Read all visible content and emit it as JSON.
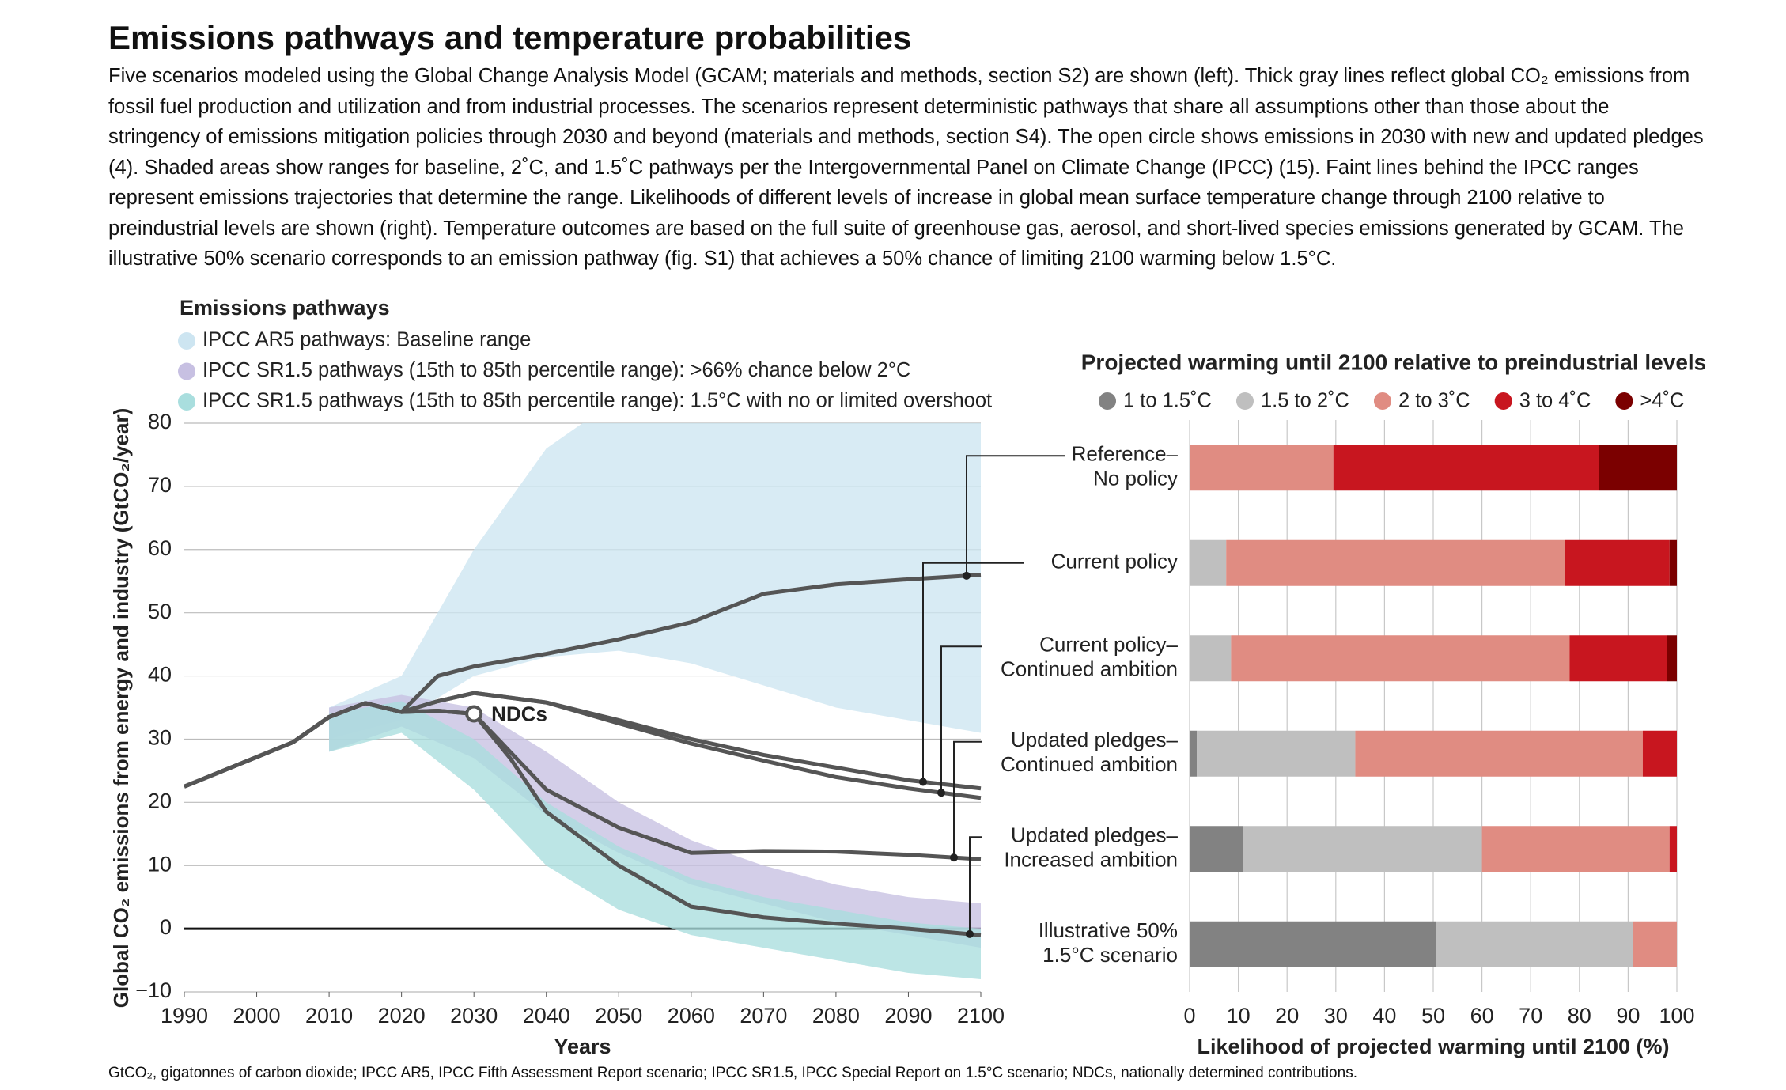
{
  "title": "Emissions pathways and temperature probabilities",
  "description": "Five scenarios modeled using the Global Change Analysis Model (GCAM; materials and methods, section S2) are shown (left). Thick gray lines reflect global CO₂ emissions from fossil fuel production and utilization and from industrial processes. The scenarios represent deterministic pathways that share all assumptions other than those about the stringency of emissions mitigation policies through 2030 and beyond (materials and methods, section S4). The open circle shows emissions in 2030 with new and updated pledges (4). Shaded areas show ranges for baseline, 2˚C, and 1.5˚C pathways per the Intergovernmental Panel on Climate Change (IPCC) (15). Faint lines behind the IPCC ranges represent emissions trajectories that determine the range. Likelihoods of different levels of increase in global mean surface temperature change through 2100 relative to preindustrial levels are shown (right). Temperature outcomes are based on the full suite of greenhouse gas, aerosol, and short-lived species emissions generated by GCAM. The illustrative 50% scenario corresponds to an emission pathway (fig. S1) that achieves a 50% chance of limiting 2100 warming below 1.5°C.",
  "footnote": "GtCO₂, gigatonnes of carbon dioxide; IPCC AR5, IPCC Fifth Assessment Report scenario; IPCC SR1.5, IPCC Special Report on 1.5°C scenario; NDCs, nationally determined contributions.",
  "chart_data": [
    {
      "type": "line",
      "title": "Emissions pathways",
      "xlabel": "Years",
      "ylabel": "Global CO₂ emissions from energy and industry (GtCO₂/year)",
      "xlim": [
        1990,
        2100
      ],
      "ylim": [
        -10,
        80
      ],
      "xticks": [
        1990,
        2000,
        2010,
        2020,
        2030,
        2040,
        2050,
        2060,
        2070,
        2080,
        2090,
        2100
      ],
      "yticks": [
        {
          "value": -10,
          "label": "−10"
        },
        0,
        10,
        20,
        30,
        40,
        50,
        60,
        70,
        80
      ],
      "grid": true,
      "ranges": [
        {
          "name": "IPCC AR5 pathways: Baseline range",
          "color": "#cde5f1",
          "x": [
            2010,
            2020,
            2030,
            2040,
            2045,
            2050,
            2060,
            2070,
            2080,
            2090,
            2100
          ],
          "lower": [
            30,
            33,
            40,
            43,
            43.5,
            44,
            42,
            38.5,
            35,
            33,
            31
          ],
          "upper": [
            35,
            40,
            60,
            76,
            80,
            80,
            80,
            80,
            80,
            80,
            80
          ]
        },
        {
          "name": "IPCC SR1.5 pathways (15th to 85th percentile range): >66% chance below 2°C",
          "color": "#c7c0e2",
          "x": [
            2010,
            2020,
            2030,
            2040,
            2050,
            2060,
            2070,
            2080,
            2090,
            2100
          ],
          "lower": [
            28,
            32,
            27,
            18,
            12,
            7,
            4,
            1,
            -1,
            -3
          ],
          "upper": [
            35,
            37,
            35,
            28,
            20,
            14,
            10,
            7,
            5,
            4
          ]
        },
        {
          "name": "IPCC SR1.5 pathways (15th to 85th percentile range): 1.5°C with no or limited overshoot",
          "color": "#a9dede",
          "x": [
            2010,
            2020,
            2030,
            2040,
            2050,
            2060,
            2070,
            2080,
            2090,
            2100
          ],
          "lower": [
            28,
            31,
            22,
            10,
            3,
            -1,
            -3,
            -5,
            -7,
            -8
          ],
          "upper": [
            34,
            36,
            30,
            20,
            13,
            8,
            5,
            3,
            1,
            0
          ]
        }
      ],
      "series": [
        {
          "color": "#555555",
          "x": [
            1990,
            2005,
            2010,
            2015,
            2020,
            2025,
            2030,
            2040,
            2050,
            2060,
            2070,
            2080,
            2090,
            2100
          ],
          "values": [
            22.5,
            29.5,
            33.5,
            35.7,
            34.3,
            40,
            41.5,
            43.5,
            45.8,
            48.5,
            53,
            54.5,
            55.3,
            56
          ]
        },
        {
          "color": "#555555",
          "x": [
            1990,
            2005,
            2010,
            2015,
            2020,
            2025,
            2030,
            2040,
            2050,
            2060,
            2070,
            2080,
            2090,
            2100
          ],
          "values": [
            22.5,
            29.5,
            33.5,
            35.7,
            34.3,
            36,
            37.3,
            35.8,
            33,
            30,
            27.5,
            25.5,
            23.5,
            22.2
          ]
        },
        {
          "color": "#555555",
          "x": [
            1990,
            2005,
            2010,
            2015,
            2020,
            2025,
            2030,
            2040,
            2050,
            2060,
            2070,
            2080,
            2090,
            2100
          ],
          "values": [
            22.5,
            29.5,
            33.5,
            35.7,
            34.3,
            36,
            37.3,
            35.8,
            32.5,
            29.3,
            26.6,
            24,
            22.2,
            20.7
          ]
        },
        {
          "color": "#555555",
          "x": [
            1990,
            2005,
            2010,
            2015,
            2020,
            2025,
            2030,
            2035,
            2040,
            2050,
            2060,
            2070,
            2080,
            2090,
            2100
          ],
          "values": [
            22.5,
            29.5,
            33.5,
            35.7,
            34.3,
            34.5,
            34,
            28,
            22,
            16,
            12,
            12.3,
            12.2,
            11.7,
            11
          ]
        },
        {
          "color": "#555555",
          "x": [
            1990,
            2005,
            2010,
            2015,
            2020,
            2025,
            2030,
            2035,
            2040,
            2050,
            2060,
            2070,
            2080,
            2090,
            2100
          ],
          "values": [
            22.5,
            29.5,
            33.5,
            35.7,
            34.3,
            34.5,
            34,
            27,
            18.5,
            10,
            3.5,
            1.8,
            0.8,
            0,
            -1
          ]
        }
      ],
      "annotations": [
        {
          "text": "NDCs",
          "x": 2030,
          "y": 34
        }
      ]
    },
    {
      "type": "hbar",
      "stacked": true,
      "title": "Projected warming until 2100 relative to preindustrial levels",
      "xlabel": "Likelihood of projected warming until 2100 (%)",
      "categories": [
        [
          "Reference–",
          "No policy"
        ],
        [
          "Current policy"
        ],
        [
          "Current policy–",
          "Continued ambition"
        ],
        [
          "Updated pledges–",
          "Continued ambition"
        ],
        [
          "Updated pledges–",
          "Increased ambition"
        ],
        [
          "Illustrative 50%",
          "1.5°C scenario"
        ]
      ],
      "xlim": [
        0,
        100
      ],
      "xticks": [
        0,
        10,
        20,
        30,
        40,
        50,
        60,
        70,
        80,
        90,
        100
      ],
      "grid": true,
      "series": [
        {
          "name": "1 to 1.5˚C",
          "color": "#828282",
          "values": [
            0,
            0,
            0,
            1.5,
            11,
            50.5
          ]
        },
        {
          "name": "1.5 to 2˚C",
          "color": "#bfbfbf",
          "values": [
            0,
            7.5,
            8.5,
            32.5,
            49,
            40.5
          ]
        },
        {
          "name": "2 to 3˚C",
          "color": "#e08c82",
          "values": [
            29.5,
            69.5,
            69.5,
            59,
            38.5,
            9
          ]
        },
        {
          "name": "3 to 4˚C",
          "color": "#c8161f",
          "values": [
            54.5,
            21.5,
            20,
            7,
            1.5,
            0
          ]
        },
        {
          "name": ">4˚C",
          "color": "#7b0000",
          "values": [
            16,
            1.5,
            2,
            0,
            0,
            0
          ]
        }
      ]
    }
  ]
}
